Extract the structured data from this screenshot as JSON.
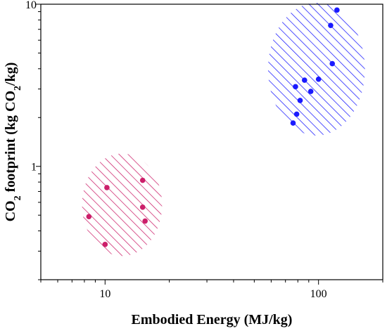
{
  "chart_data": {
    "type": "scatter",
    "xscale": "log",
    "yscale": "log",
    "xlim": [
      5,
      200
    ],
    "ylim": [
      0.2,
      10
    ],
    "grid": false,
    "xlabel": "Embodied Energy (MJ/kg)",
    "ylabel": "CO2 footprint (kg CO2/kg)",
    "xticks": [
      {
        "value": 10,
        "label": "10"
      },
      {
        "value": 100,
        "label": "100"
      }
    ],
    "yticks": [
      {
        "value": 1,
        "label": "1"
      },
      {
        "value": 10,
        "label": "10"
      }
    ],
    "series": [
      {
        "color": "#cc1f6a",
        "points": [
          {
            "x": 8.4,
            "y": 0.49
          },
          {
            "x": 10.0,
            "y": 0.33
          },
          {
            "x": 10.2,
            "y": 0.74
          },
          {
            "x": 15.0,
            "y": 0.82
          },
          {
            "x": 15.0,
            "y": 0.56
          },
          {
            "x": 15.4,
            "y": 0.46
          }
        ],
        "region": {
          "x": [
            7.8,
            18.5
          ],
          "y": [
            0.28,
            1.2
          ]
        }
      },
      {
        "color": "#1a1aff",
        "points": [
          {
            "x": 76,
            "y": 1.85
          },
          {
            "x": 78,
            "y": 3.1
          },
          {
            "x": 79,
            "y": 2.1
          },
          {
            "x": 82,
            "y": 2.55
          },
          {
            "x": 86,
            "y": 3.4
          },
          {
            "x": 92,
            "y": 2.9
          },
          {
            "x": 100,
            "y": 3.45
          },
          {
            "x": 114,
            "y": 7.4
          },
          {
            "x": 116,
            "y": 4.3
          },
          {
            "x": 122,
            "y": 9.2
          }
        ],
        "region": {
          "x": [
            58,
            165
          ],
          "y": [
            1.55,
            10.2
          ]
        }
      }
    ]
  }
}
